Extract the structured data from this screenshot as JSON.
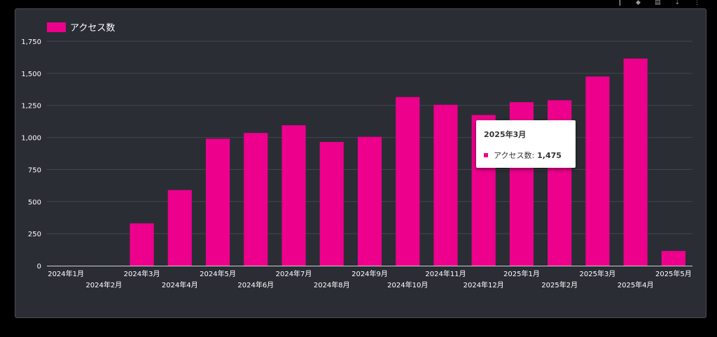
{
  "colors": {
    "bar": "#ec008c",
    "grid": "#44464f",
    "axis": "#cfcfcf",
    "text": "#ffffff"
  },
  "chart_data": {
    "type": "bar",
    "legend": {
      "label": "アクセス数",
      "placement": "top-left"
    },
    "categories": [
      "2024年1月",
      "2024年2月",
      "2024年3月",
      "2024年4月",
      "2024年5月",
      "2024年6月",
      "2024年7月",
      "2024年8月",
      "2024年9月",
      "2024年10月",
      "2024年11月",
      "2024年12月",
      "2025年1月",
      "2025年2月",
      "2025年3月",
      "2025年4月",
      "2025年5月"
    ],
    "series": [
      {
        "name": "アクセス数",
        "values": [
          0,
          0,
          330,
          590,
          990,
          1035,
          1095,
          965,
          1005,
          1315,
          1255,
          1175,
          1275,
          1290,
          1475,
          1615,
          115
        ]
      }
    ],
    "yticks": [
      "0",
      "250",
      "500",
      "750",
      "1,000",
      "1,250",
      "1,500",
      "1,750"
    ],
    "ylim": [
      0,
      1750
    ],
    "grid": true
  },
  "tooltip": {
    "title": "2025年3月",
    "label": "アクセス数:",
    "value": "1,475",
    "category_index": 14
  }
}
